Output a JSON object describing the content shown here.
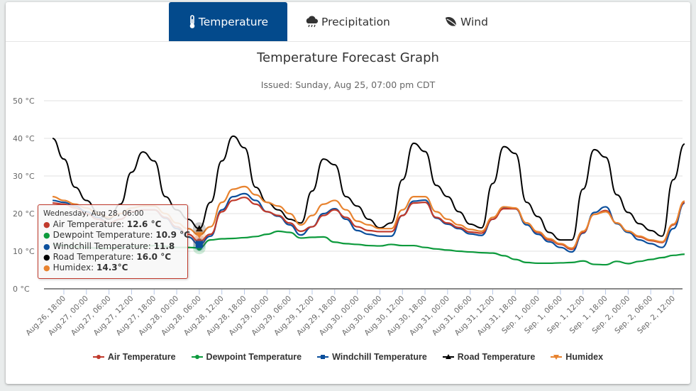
{
  "tabs": [
    {
      "label": "Temperature",
      "icon": "thermometer-icon",
      "active": true
    },
    {
      "label": "Precipitation",
      "icon": "rain-cloud-icon",
      "active": false
    },
    {
      "label": "Wind",
      "icon": "leaf-icon",
      "active": false
    }
  ],
  "chart_data": {
    "type": "line",
    "title": "Temperature Forecast Graph",
    "subtitle": "Issued: Sunday, Aug 25, 07:00 pm CDT",
    "ylim": [
      0,
      50
    ],
    "yticks": [
      "0 °C",
      "10 °C",
      "20 °C",
      "30 °C",
      "40 °C",
      "50 °C"
    ],
    "ytick_values": [
      0,
      10,
      20,
      30,
      40,
      50
    ],
    "grid": true,
    "legend": "bottom",
    "xticks": [
      "Aug.26, 18:00",
      "Aug.27, 00:00",
      "Aug.27, 06:00",
      "Aug.27, 12:00",
      "Aug.27, 18:00",
      "Aug.28, 00:00",
      "Aug.28, 06:00",
      "Aug.28, 12:00",
      "Aug.28, 18:00",
      "Aug.29, 00:00",
      "Aug.29, 06:00",
      "Aug.29, 12:00",
      "Aug.29, 18:00",
      "Aug.30, 00:00",
      "Aug.30, 06:00",
      "Aug.30, 12:00",
      "Aug.30, 18:00",
      "Aug.31, 00:00",
      "Aug.31, 06:00",
      "Aug.31, 12:00",
      "Aug.31, 18:00",
      "Sep. 1, 00:00",
      "Sep. 1, 06:00",
      "Sep. 1, 12:00",
      "Sep. 1, 18:00",
      "Sep. 2, 00:00",
      "Sep. 2, 06:00",
      "Sep. 2, 12:00"
    ],
    "x": [
      "Aug 26, 15:00",
      "Aug 26, 18:00",
      "Aug 26, 21:00",
      "Aug 27, 00:00",
      "Aug 27, 03:00",
      "Aug 27, 06:00",
      "Aug 27, 09:00",
      "Aug 27, 12:00",
      "Aug 27, 15:00",
      "Aug 27, 18:00",
      "Aug 27, 21:00",
      "Aug 28, 00:00",
      "Aug 28, 03:00",
      "Aug 28, 06:00",
      "Aug 28, 09:00",
      "Aug 28, 12:00",
      "Aug 28, 15:00",
      "Aug 28, 18:00",
      "Aug 28, 21:00",
      "Aug 29, 00:00",
      "Aug 29, 03:00",
      "Aug 29, 06:00",
      "Aug 29, 09:00",
      "Aug 29, 12:00",
      "Aug 29, 15:00",
      "Aug 29, 18:00",
      "Aug 29, 21:00",
      "Aug 30, 00:00",
      "Aug 30, 03:00",
      "Aug 30, 06:00",
      "Aug 30, 09:00",
      "Aug 30, 12:00",
      "Aug 30, 15:00",
      "Aug 30, 18:00",
      "Aug 30, 21:00",
      "Aug 31, 00:00",
      "Aug 31, 03:00",
      "Aug 31, 06:00",
      "Aug 31, 09:00",
      "Aug 31, 12:00",
      "Aug 31, 15:00",
      "Aug 31, 18:00",
      "Aug 31, 21:00",
      "Sep 1, 00:00",
      "Sep 1, 03:00",
      "Sep 1, 06:00",
      "Sep 1, 09:00",
      "Sep 1, 12:00",
      "Sep 1, 15:00",
      "Sep 1, 18:00",
      "Sep 1, 21:00",
      "Sep 2, 00:00",
      "Sep 2, 03:00",
      "Sep 2, 06:00",
      "Sep 2, 09:00",
      "Sep 2, 12:00",
      "Sep 2, 15:00"
    ],
    "series": [
      {
        "name": "Air Temperature",
        "color": "#c0392b",
        "marker": "circle",
        "values": [
          22.8,
          22.5,
          21.5,
          20,
          18.5,
          17.5,
          18.5,
          20.5,
          21,
          21,
          19,
          16.5,
          14.5,
          12.6,
          14.5,
          20.5,
          23.5,
          24.3,
          22.5,
          20.5,
          19.5,
          17.5,
          15.3,
          16.5,
          19.5,
          21,
          19,
          16.5,
          15.5,
          15.2,
          15.2,
          19.5,
          22.8,
          23,
          19,
          17.5,
          16.3,
          15.1,
          14.8,
          18.5,
          21.3,
          21.3,
          17.5,
          15,
          13,
          11.8,
          10.5,
          15,
          19.8,
          20.8,
          17.5,
          15.3,
          13.8,
          12.8,
          12.3,
          17,
          23
        ]
      },
      {
        "name": "Dewpoint Temperature",
        "color": "#0c9a3c",
        "marker": "circle",
        "values": [
          11.8,
          11.5,
          11.2,
          11,
          10.8,
          10.8,
          11,
          11.3,
          11.2,
          11.5,
          11.3,
          11,
          11,
          10.9,
          13,
          13.3,
          13.4,
          13.6,
          13.9,
          14.5,
          15.3,
          15,
          13.5,
          13.7,
          13.8,
          12.4,
          12,
          11.8,
          11.5,
          11.4,
          11.8,
          11.5,
          11.5,
          11,
          10.6,
          10.3,
          10,
          9.8,
          9.6,
          9.5,
          8.8,
          7.8,
          7,
          6.8,
          6.8,
          6.9,
          7,
          7.4,
          6.5,
          6.4,
          7.3,
          6.7,
          7.3,
          7.8,
          8.3,
          8.9,
          9.2
        ]
      },
      {
        "name": "Windchill Temperature",
        "color": "#0b4f9c",
        "marker": "square",
        "values": [
          23.5,
          23,
          22,
          20.5,
          19,
          17.5,
          18.5,
          20.5,
          21,
          21,
          18.8,
          16,
          13.8,
          11.8,
          14,
          21,
          24.5,
          25.3,
          23.5,
          20.5,
          19.3,
          17,
          14.3,
          16.5,
          20,
          21.3,
          18.5,
          15.5,
          14.5,
          14,
          14,
          19.5,
          23.3,
          23.6,
          18.8,
          17.2,
          16,
          14.6,
          14.2,
          18.5,
          21.5,
          21.3,
          17,
          14.5,
          12.5,
          11,
          9.8,
          14.8,
          20.3,
          21.8,
          17.3,
          15,
          13,
          12,
          11,
          16,
          22.8
        ]
      },
      {
        "name": "Road Temperature",
        "color": "#000000",
        "marker": "triangle",
        "values": [
          40,
          34.5,
          27,
          23.5,
          20.5,
          18.5,
          22.5,
          31,
          36.4,
          34,
          24.5,
          21,
          18.5,
          16,
          23,
          34,
          40.6,
          37.5,
          27,
          23,
          21,
          18.5,
          17.5,
          26,
          34.5,
          33,
          24.5,
          22,
          18.5,
          16.2,
          17.5,
          29,
          38.7,
          36.5,
          27.5,
          24.5,
          20.5,
          17.2,
          16.2,
          28,
          37.8,
          36,
          23,
          19.2,
          15,
          13,
          13,
          26.5,
          37,
          35,
          25,
          20.3,
          17.3,
          15.5,
          14,
          29,
          38.5
        ]
      },
      {
        "name": "Humidex",
        "color": "#e8832f",
        "marker": "triangle-down",
        "values": [
          24.5,
          23.5,
          22.5,
          21.5,
          20,
          19,
          20,
          21.5,
          22,
          22,
          20,
          17.5,
          16,
          14.3,
          16.5,
          23,
          26.5,
          27.2,
          25,
          23,
          22,
          20,
          17,
          19.5,
          22.5,
          23.5,
          21,
          18,
          17,
          16,
          16,
          21,
          24.5,
          24.5,
          20.5,
          18.5,
          17,
          15.8,
          15.3,
          19,
          21.8,
          21.5,
          17.5,
          15.2,
          13.3,
          12,
          10.8,
          15.3,
          19.8,
          20.5,
          17.5,
          15.3,
          14,
          13,
          12.5,
          17.2,
          23.3
        ]
      }
    ]
  },
  "tooltip": {
    "header": "Wednesday, Aug 28, 06:00",
    "rows": [
      {
        "label": "Air Temperature: ",
        "value": "12.6 °C",
        "color": "#c0392b"
      },
      {
        "label": "Dewpoint Temperature: ",
        "value": "10.9 °C",
        "color": "#0c9a3c"
      },
      {
        "label": "Windchill Temperature: ",
        "value": "11.8",
        "color": "#0b4f9c"
      },
      {
        "label": "Road Temperature: ",
        "value": "16.0 °C",
        "color": "#000000"
      },
      {
        "label": "Humidex: ",
        "value": "14.3°C",
        "color": "#e8832f"
      }
    ]
  }
}
